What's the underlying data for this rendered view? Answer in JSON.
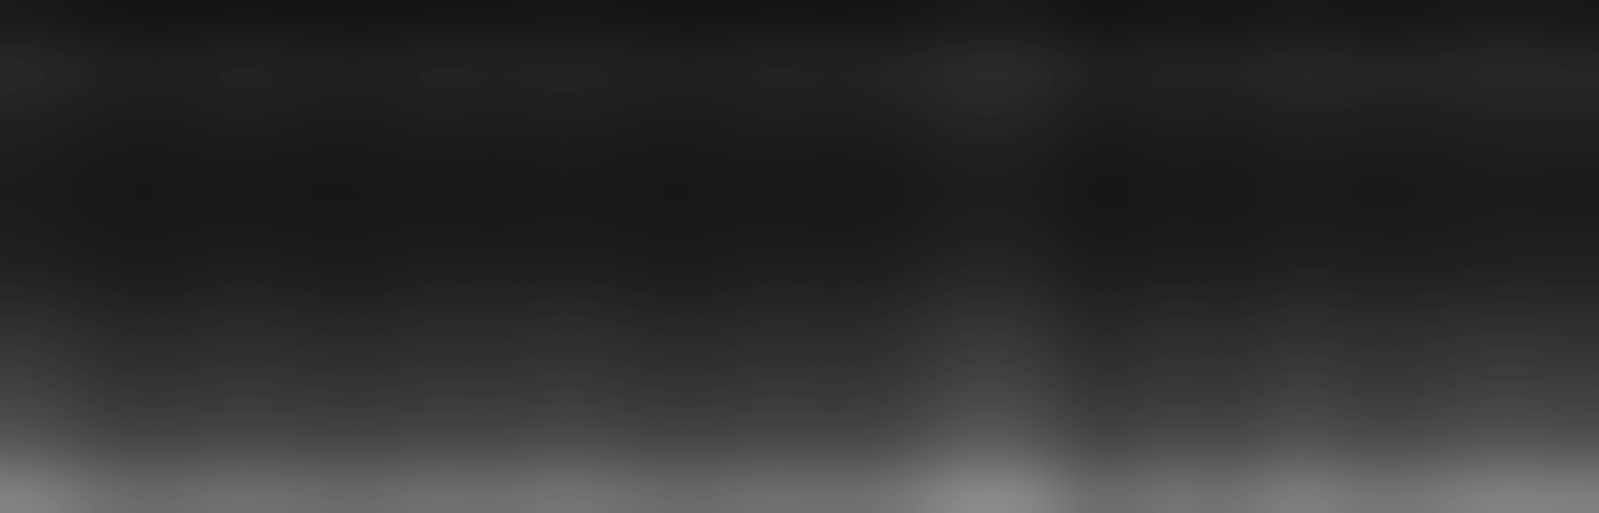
{
  "chart_data": {
    "type": "heatmap",
    "tick_labels": false,
    "clim": [
      0,
      100
    ],
    "cells": [
      [
        10,
        8,
        8,
        8,
        8,
        8,
        8,
        8,
        9,
        8,
        8,
        8,
        8,
        8,
        10,
        10,
        7,
        9,
        8,
        10,
        8,
        9,
        10,
        9
      ],
      [
        17,
        14,
        13,
        15,
        14,
        13,
        15,
        14,
        15,
        14,
        13,
        15,
        14,
        15,
        18,
        18,
        13,
        15,
        14,
        17,
        15,
        15,
        17,
        16
      ],
      [
        14,
        12,
        11,
        13,
        12,
        11,
        13,
        12,
        13,
        12,
        11,
        13,
        12,
        13,
        16,
        15,
        11,
        13,
        12,
        14,
        13,
        13,
        14,
        14
      ],
      [
        12,
        10,
        10,
        11,
        10,
        10,
        11,
        10,
        11,
        10,
        10,
        11,
        10,
        11,
        13,
        13,
        9,
        11,
        10,
        12,
        11,
        11,
        12,
        12
      ],
      [
        11,
        9,
        9,
        9,
        9,
        9,
        9,
        9,
        10,
        9,
        9,
        9,
        9,
        9,
        12,
        11,
        8,
        10,
        9,
        11,
        9,
        10,
        11,
        10
      ],
      [
        12,
        10,
        10,
        11,
        10,
        10,
        11,
        10,
        11,
        10,
        10,
        11,
        10,
        11,
        13,
        13,
        9,
        11,
        10,
        12,
        11,
        11,
        12,
        12
      ],
      [
        14,
        12,
        11,
        13,
        12,
        11,
        13,
        12,
        13,
        12,
        11,
        13,
        12,
        13,
        16,
        15,
        11,
        13,
        12,
        14,
        13,
        13,
        14,
        14
      ],
      [
        19,
        16,
        15,
        17,
        16,
        15,
        17,
        16,
        18,
        16,
        15,
        17,
        16,
        17,
        21,
        20,
        14,
        18,
        16,
        19,
        17,
        18,
        19,
        18
      ],
      [
        23,
        19,
        18,
        20,
        19,
        18,
        20,
        19,
        21,
        19,
        18,
        20,
        19,
        20,
        25,
        24,
        17,
        21,
        19,
        23,
        20,
        21,
        23,
        22
      ],
      [
        28,
        23,
        22,
        24,
        23,
        22,
        24,
        23,
        25,
        23,
        22,
        24,
        23,
        24,
        30,
        29,
        21,
        25,
        23,
        28,
        24,
        25,
        28,
        26
      ],
      [
        35,
        29,
        28,
        30,
        29,
        28,
        30,
        29,
        32,
        29,
        28,
        30,
        29,
        30,
        38,
        36,
        26,
        32,
        29,
        35,
        30,
        32,
        35,
        33
      ],
      [
        53,
        44,
        42,
        46,
        44,
        42,
        46,
        44,
        48,
        44,
        42,
        46,
        44,
        46,
        57,
        55,
        40,
        48,
        44,
        53,
        46,
        48,
        53,
        51
      ]
    ]
  }
}
